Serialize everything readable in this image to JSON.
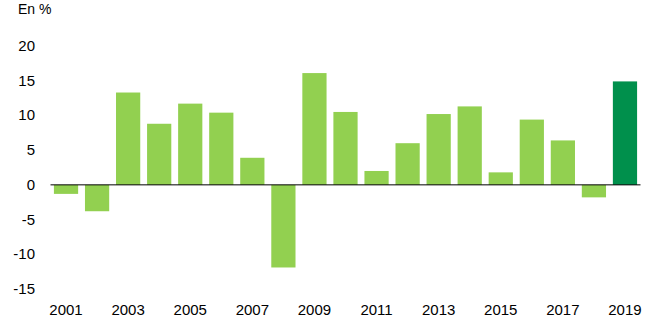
{
  "chart_data": {
    "type": "bar",
    "y_label": "En %",
    "categories": [
      "2001",
      null,
      "2003",
      null,
      "2005",
      null,
      "2007",
      null,
      "2009",
      null,
      "2011",
      null,
      "2013",
      null,
      "2015",
      null,
      "2017",
      null,
      "2019"
    ],
    "values": [
      -1.3,
      -3.8,
      13.3,
      8.8,
      11.7,
      10.4,
      3.9,
      -11.9,
      16.1,
      10.5,
      2.0,
      6.0,
      10.2,
      11.3,
      1.8,
      9.4,
      6.4,
      -1.8,
      14.9
    ],
    "colors": [
      "#92d050",
      "#92d050",
      "#92d050",
      "#92d050",
      "#92d050",
      "#92d050",
      "#92d050",
      "#92d050",
      "#92d050",
      "#92d050",
      "#92d050",
      "#92d050",
      "#92d050",
      "#92d050",
      "#92d050",
      "#92d050",
      "#92d050",
      "#92d050",
      "#00904c"
    ],
    "ylim": [
      -15,
      20
    ],
    "yticks": [
      -15,
      -10,
      -5,
      0,
      5,
      10,
      15,
      20
    ],
    "grid": false
  }
}
